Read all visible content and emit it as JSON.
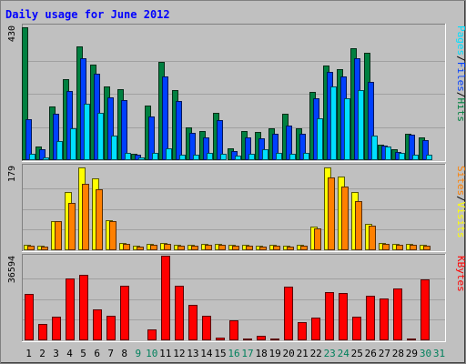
{
  "chart_data": {
    "type": "bar",
    "title": "Daily usage for June 2012",
    "categories": [
      "1",
      "2",
      "3",
      "4",
      "5",
      "6",
      "7",
      "8",
      "9",
      "10",
      "11",
      "12",
      "13",
      "14",
      "15",
      "16",
      "17",
      "18",
      "19",
      "20",
      "21",
      "22",
      "23",
      "24",
      "25",
      "26",
      "27",
      "28",
      "29",
      "30",
      "31"
    ],
    "weekend_days": [
      "9",
      "10",
      "16",
      "17",
      "23",
      "24",
      "30",
      "31"
    ],
    "panels": [
      {
        "name": "hits-files-pages",
        "max_label": "430",
        "ylim": [
          0,
          430
        ],
        "right_labels": [
          "Pages",
          "Files",
          "Hits"
        ],
        "series": [
          {
            "name": "Hits",
            "values": [
              430,
              45,
              173,
              262,
              367,
              309,
              240,
              231,
              22,
              178,
              319,
              228,
              107,
              94,
              153,
              37,
              94,
              90,
              103,
              149,
              103,
              221,
              306,
              294,
              362,
              347,
              51,
              36,
              86,
              73,
              0
            ]
          },
          {
            "name": "Files",
            "values": [
              133,
              34,
              151,
              224,
              329,
              281,
              202,
              193,
              17,
              140,
              270,
              190,
              88,
              75,
              131,
              29,
              73,
              71,
              85,
              113,
              85,
              200,
              286,
              270,
              329,
              253,
              46,
              27,
              81,
              65,
              0
            ]
          },
          {
            "name": "Pages",
            "values": [
              20,
              10,
              62,
              103,
              184,
              154,
              80,
              25,
              8,
              24,
              39,
              17,
              17,
              25,
              20,
              16,
              20,
              34,
              25,
              22,
              23,
              136,
              238,
              201,
              228,
              80,
              44,
              25,
              19,
              18,
              0
            ]
          }
        ]
      },
      {
        "name": "visits-sites",
        "max_label": "179",
        "ylim": [
          0,
          179
        ],
        "right_labels": [
          "Sites",
          "Visits"
        ],
        "series": [
          {
            "name": "Visits",
            "values": [
              12,
              9,
              63,
              125,
              179,
              155,
              64,
              16,
              10,
              13,
              16,
              11,
              12,
              13,
              13,
              12,
              12,
              9,
              12,
              9,
              11,
              51,
              179,
              160,
              125,
              57,
              15,
              13,
              13,
              12,
              0
            ]
          },
          {
            "name": "Sites",
            "values": [
              10,
              7,
              63,
              103,
              143,
              132,
              63,
              14,
              8,
              11,
              14,
              9,
              10,
              11,
              11,
              10,
              10,
              7,
              10,
              7,
              9,
              47,
              157,
              138,
              107,
              53,
              13,
              11,
              11,
              10,
              0
            ]
          }
        ]
      },
      {
        "name": "kbytes",
        "max_label": "36594",
        "ylim": [
          0,
          36594
        ],
        "right_labels": [
          "KBytes"
        ],
        "series": [
          {
            "name": "KBytes",
            "values": [
              20400,
              7200,
              10600,
              27400,
              28800,
              13500,
              11000,
              24000,
              0,
              5000,
              37300,
              24000,
              15500,
              11000,
              1200,
              8800,
              1000,
              2100,
              800,
              23700,
              8100,
              10100,
              21500,
              20900,
              10600,
              19800,
              18500,
              23100,
              1000,
              27000,
              0
            ]
          }
        ]
      }
    ],
    "colors": {
      "Hits": "#008040",
      "Files": "#0040ff",
      "Pages": "#00e0ff",
      "Visits": "#ffff00",
      "Sites": "#ff8000",
      "KBytes": "#ff0000",
      "title": "#0000ff",
      "weekday_label": "#000000",
      "weekend_label": "#00805c",
      "background": "#c0c0c0"
    }
  }
}
